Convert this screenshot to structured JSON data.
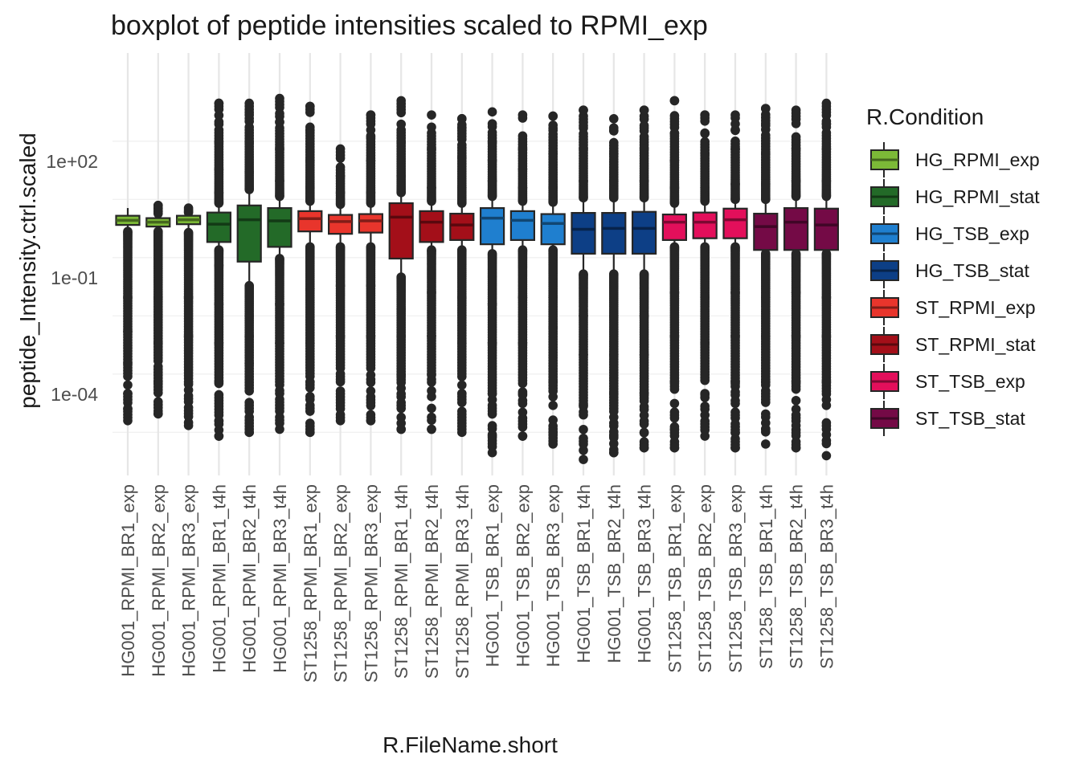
{
  "chart_data": {
    "type": "boxplot",
    "title": "boxplot of peptide intensities scaled to RPMI_exp",
    "xlabel": "R.FileName.short",
    "ylabel": "peptide_Intensity.ctrl.scaled",
    "y_scale": "log10",
    "ylim": [
      1e-06,
      10000.0
    ],
    "y_ticks": [
      {
        "value": 0.0001,
        "label": "1e-04"
      },
      {
        "value": 0.1,
        "label": "1e-01"
      },
      {
        "value": 100,
        "label": "1e+02"
      }
    ],
    "grid": true,
    "legend": {
      "title": "R.Condition",
      "position": "right",
      "entries": [
        {
          "name": "HG_RPMI_exp",
          "color": "#7CB937"
        },
        {
          "name": "HG_RPMI_stat",
          "color": "#236A28"
        },
        {
          "name": "HG_TSB_exp",
          "color": "#1F7FCF"
        },
        {
          "name": "HG_TSB_stat",
          "color": "#0D3F86"
        },
        {
          "name": "ST_RPMI_exp",
          "color": "#E8352C"
        },
        {
          "name": "ST_RPMI_stat",
          "color": "#A30F19"
        },
        {
          "name": "ST_TSB_exp",
          "color": "#E30F5B"
        },
        {
          "name": "ST_TSB_stat",
          "color": "#740A46"
        }
      ]
    },
    "boxes": [
      {
        "category": "HG001_RPMI_BR1_exp",
        "condition": "HG_RPMI_exp",
        "whisker_low": 1.5,
        "q1": 2.2,
        "median": 2.9,
        "q3": 3.8,
        "whisker_high": 6.0,
        "outliers_low": [
          2e-05,
          4e-05,
          0.0001,
          0.0006,
          0.004,
          0.03
        ],
        "outliers_high": []
      },
      {
        "category": "HG001_RPMI_BR2_exp",
        "condition": "HG_RPMI_exp",
        "whisker_low": 1.5,
        "q1": 2.0,
        "median": 2.6,
        "q3": 3.3,
        "whisker_high": 4.3,
        "outliers_low": [
          3e-05,
          0.0002,
          0.002,
          0.03
        ],
        "outliers_high": [
          5,
          6,
          7
        ]
      },
      {
        "category": "HG001_RPMI_BR3_exp",
        "condition": "HG_RPMI_exp",
        "whisker_low": 1.4,
        "q1": 2.3,
        "median": 3.0,
        "q3": 3.8,
        "whisker_high": 4.6,
        "outliers_low": [
          1.5e-05,
          0.0002,
          0.003,
          0.03
        ],
        "outliers_high": [
          6
        ]
      },
      {
        "category": "HG001_RPMI_BR1_t4h",
        "condition": "HG_RPMI_stat",
        "whisker_low": 0.5,
        "q1": 0.8,
        "median": 2.3,
        "q3": 4.6,
        "whisker_high": 8.0,
        "outliers_low": [
          8e-06,
          2e-05,
          0.0002,
          0.002,
          0.02,
          0.2
        ],
        "outliers_high": [
          15,
          60,
          300,
          1000,
          3000
        ]
      },
      {
        "category": "HG001_RPMI_BR2_t4h",
        "condition": "HG_RPMI_stat",
        "whisker_low": 0.06,
        "q1": 0.25,
        "median": 3.0,
        "q3": 7.0,
        "whisker_high": 18.0,
        "outliers_low": [
          1e-05,
          0.0006,
          0.003,
          0.01
        ],
        "outliers_high": [
          50,
          300,
          1500,
          3000
        ]
      },
      {
        "category": "HG001_RPMI_BR3_t4h",
        "condition": "HG_RPMI_stat",
        "whisker_low": 0.3,
        "q1": 0.6,
        "median": 2.8,
        "q3": 6.0,
        "whisker_high": 12.0,
        "outliers_low": [
          1.2e-05,
          0.0002,
          0.002,
          0.02
        ],
        "outliers_high": [
          30,
          200,
          1000,
          4000
        ]
      },
      {
        "category": "ST1258_RPMI_BR1_exp",
        "condition": "ST_RPMI_exp",
        "whisker_low": 0.6,
        "q1": 1.5,
        "median": 3.2,
        "q3": 5.0,
        "whisker_high": 9.0,
        "outliers_low": [
          1e-05,
          0.0002,
          0.002,
          0.05
        ],
        "outliers_high": [
          20,
          100,
          600,
          2500
        ]
      },
      {
        "category": "ST1258_RPMI_BR2_exp",
        "condition": "ST_RPMI_exp",
        "whisker_low": 0.6,
        "q1": 1.3,
        "median": 2.7,
        "q3": 4.0,
        "whisker_high": 7.5,
        "outliers_low": [
          2e-05,
          0.0002,
          0.003,
          0.06
        ],
        "outliers_high": [
          15,
          40,
          200
        ]
      },
      {
        "category": "ST1258_RPMI_BR3_exp",
        "condition": "ST_RPMI_exp",
        "whisker_low": 0.6,
        "q1": 1.4,
        "median": 2.8,
        "q3": 4.2,
        "whisker_high": 8.0,
        "outliers_low": [
          2e-05,
          0.0003,
          0.003,
          0.06
        ],
        "outliers_high": [
          15,
          100,
          400,
          1500
        ]
      },
      {
        "category": "ST1258_RPMI_BR1_t4h",
        "condition": "ST_RPMI_stat",
        "whisker_low": 0.1,
        "q1": 0.3,
        "median": 3.5,
        "q3": 8.0,
        "whisker_high": 15.0,
        "outliers_low": [
          1.2e-05,
          0.0003,
          0.003,
          0.015
        ],
        "outliers_high": [
          40,
          300,
          3500
        ]
      },
      {
        "category": "ST1258_RPMI_BR2_t4h",
        "condition": "ST_RPMI_stat",
        "whisker_low": 0.5,
        "q1": 0.8,
        "median": 2.6,
        "q3": 5.0,
        "whisker_high": 9.0,
        "outliers_low": [
          1.2e-05,
          0.0003,
          0.003,
          0.04
        ],
        "outliers_high": [
          20,
          200,
          1500
        ]
      },
      {
        "category": "ST1258_RPMI_BR3_t4h",
        "condition": "ST_RPMI_stat",
        "whisker_low": 0.5,
        "q1": 0.9,
        "median": 2.2,
        "q3": 4.3,
        "whisker_high": 8.0,
        "outliers_low": [
          1e-05,
          0.0001,
          0.002,
          0.03
        ],
        "outliers_high": [
          20,
          120,
          700,
          1200
        ]
      },
      {
        "category": "HG001_TSB_BR1_exp",
        "condition": "HG_TSB_exp",
        "whisker_low": 0.4,
        "q1": 0.7,
        "median": 3.3,
        "q3": 6.0,
        "whisker_high": 12.0,
        "outliers_low": [
          3e-06,
          8e-06,
          0.0001,
          0.002,
          0.02
        ],
        "outliers_high": [
          30,
          100,
          300,
          1800
        ]
      },
      {
        "category": "HG001_TSB_BR2_exp",
        "condition": "HG_TSB_exp",
        "whisker_low": 0.5,
        "q1": 0.9,
        "median": 2.9,
        "q3": 5.0,
        "whisker_high": 9.0,
        "outliers_low": [
          8e-06,
          0.0001,
          0.002,
          0.03
        ],
        "outliers_high": [
          20,
          60,
          200,
          1500
        ]
      },
      {
        "category": "HG001_TSB_BR3_exp",
        "condition": "HG_TSB_exp",
        "whisker_low": 0.5,
        "q1": 0.7,
        "median": 2.4,
        "q3": 4.2,
        "whisker_high": 8.5,
        "outliers_low": [
          5e-06,
          1e-05,
          0.0002,
          0.005,
          0.03
        ],
        "outliers_high": [
          20,
          150,
          600,
          1400
        ]
      },
      {
        "category": "HG001_TSB_BR1_t4h",
        "condition": "HG_TSB_stat",
        "whisker_low": 0.12,
        "q1": 0.4,
        "median": 1.7,
        "q3": 4.5,
        "whisker_high": 11.0,
        "outliers_low": [
          2e-06,
          5e-06,
          5e-05,
          0.001,
          0.01
        ],
        "outliers_high": [
          30,
          200,
          800,
          2000
        ]
      },
      {
        "category": "HG001_TSB_BR2_t4h",
        "condition": "HG_TSB_stat",
        "whisker_low": 0.12,
        "q1": 0.4,
        "median": 1.8,
        "q3": 4.5,
        "whisker_high": 11.0,
        "outliers_low": [
          3e-06,
          8e-06,
          0.0001,
          0.001,
          0.01
        ],
        "outliers_high": [
          30,
          150,
          600,
          1200
        ]
      },
      {
        "category": "HG001_TSB_BR3_t4h",
        "condition": "HG_TSB_stat",
        "whisker_low": 0.12,
        "q1": 0.4,
        "median": 1.8,
        "q3": 4.8,
        "whisker_high": 11.0,
        "outliers_low": [
          4e-06,
          1e-05,
          0.0001,
          0.001,
          0.01
        ],
        "outliers_high": [
          30,
          200,
          800,
          2000
        ]
      },
      {
        "category": "ST1258_TSB_BR1_exp",
        "condition": "ST_TSB_exp",
        "whisker_low": 0.6,
        "q1": 0.9,
        "median": 2.6,
        "q3": 4.1,
        "whisker_high": 8.0,
        "outliers_low": [
          4e-06,
          1.2e-05,
          0.0002,
          0.003,
          0.04
        ],
        "outliers_high": [
          20,
          100,
          500,
          3500
        ]
      },
      {
        "category": "ST1258_TSB_BR2_exp",
        "condition": "ST_TSB_exp",
        "whisker_low": 0.6,
        "q1": 1.0,
        "median": 2.6,
        "q3": 4.6,
        "whisker_high": 9.0,
        "outliers_low": [
          8e-06,
          0.0001,
          0.002,
          0.03
        ],
        "outliers_high": [
          20,
          150,
          500,
          1500
        ]
      },
      {
        "category": "ST1258_TSB_BR3_exp",
        "condition": "ST_TSB_exp",
        "whisker_low": 0.6,
        "q1": 1.0,
        "median": 3.0,
        "q3": 5.8,
        "whisker_high": 10.0,
        "outliers_low": [
          4e-06,
          1e-05,
          0.0002,
          0.003,
          0.04
        ],
        "outliers_high": [
          25,
          200,
          600,
          1500
        ]
      },
      {
        "category": "ST1258_TSB_BR1_t4h",
        "condition": "ST_TSB_stat",
        "whisker_low": 0.4,
        "q1": 0.5,
        "median": 2.0,
        "q3": 4.3,
        "whisker_high": 10.0,
        "outliers_low": [
          5e-06,
          1.2e-05,
          0.0002,
          0.003,
          0.03
        ],
        "outliers_high": [
          25,
          150,
          800,
          2200
        ]
      },
      {
        "category": "ST1258_TSB_BR2_t4h",
        "condition": "ST_TSB_stat",
        "whisker_low": 0.4,
        "q1": 0.5,
        "median": 2.6,
        "q3": 6.0,
        "whisker_high": 12.0,
        "outliers_low": [
          4e-06,
          1.5e-05,
          0.0002,
          0.003,
          0.04
        ],
        "outliers_high": [
          30,
          200,
          900,
          2000
        ]
      },
      {
        "category": "ST1258_TSB_BR3_t4h",
        "condition": "ST_TSB_stat",
        "whisker_low": 0.4,
        "q1": 0.5,
        "median": 2.2,
        "q3": 5.8,
        "whisker_high": 12.0,
        "outliers_low": [
          2.5e-06,
          1.2e-05,
          0.0002,
          0.003,
          0.03
        ],
        "outliers_high": [
          30,
          200,
          900,
          3000
        ]
      }
    ]
  }
}
